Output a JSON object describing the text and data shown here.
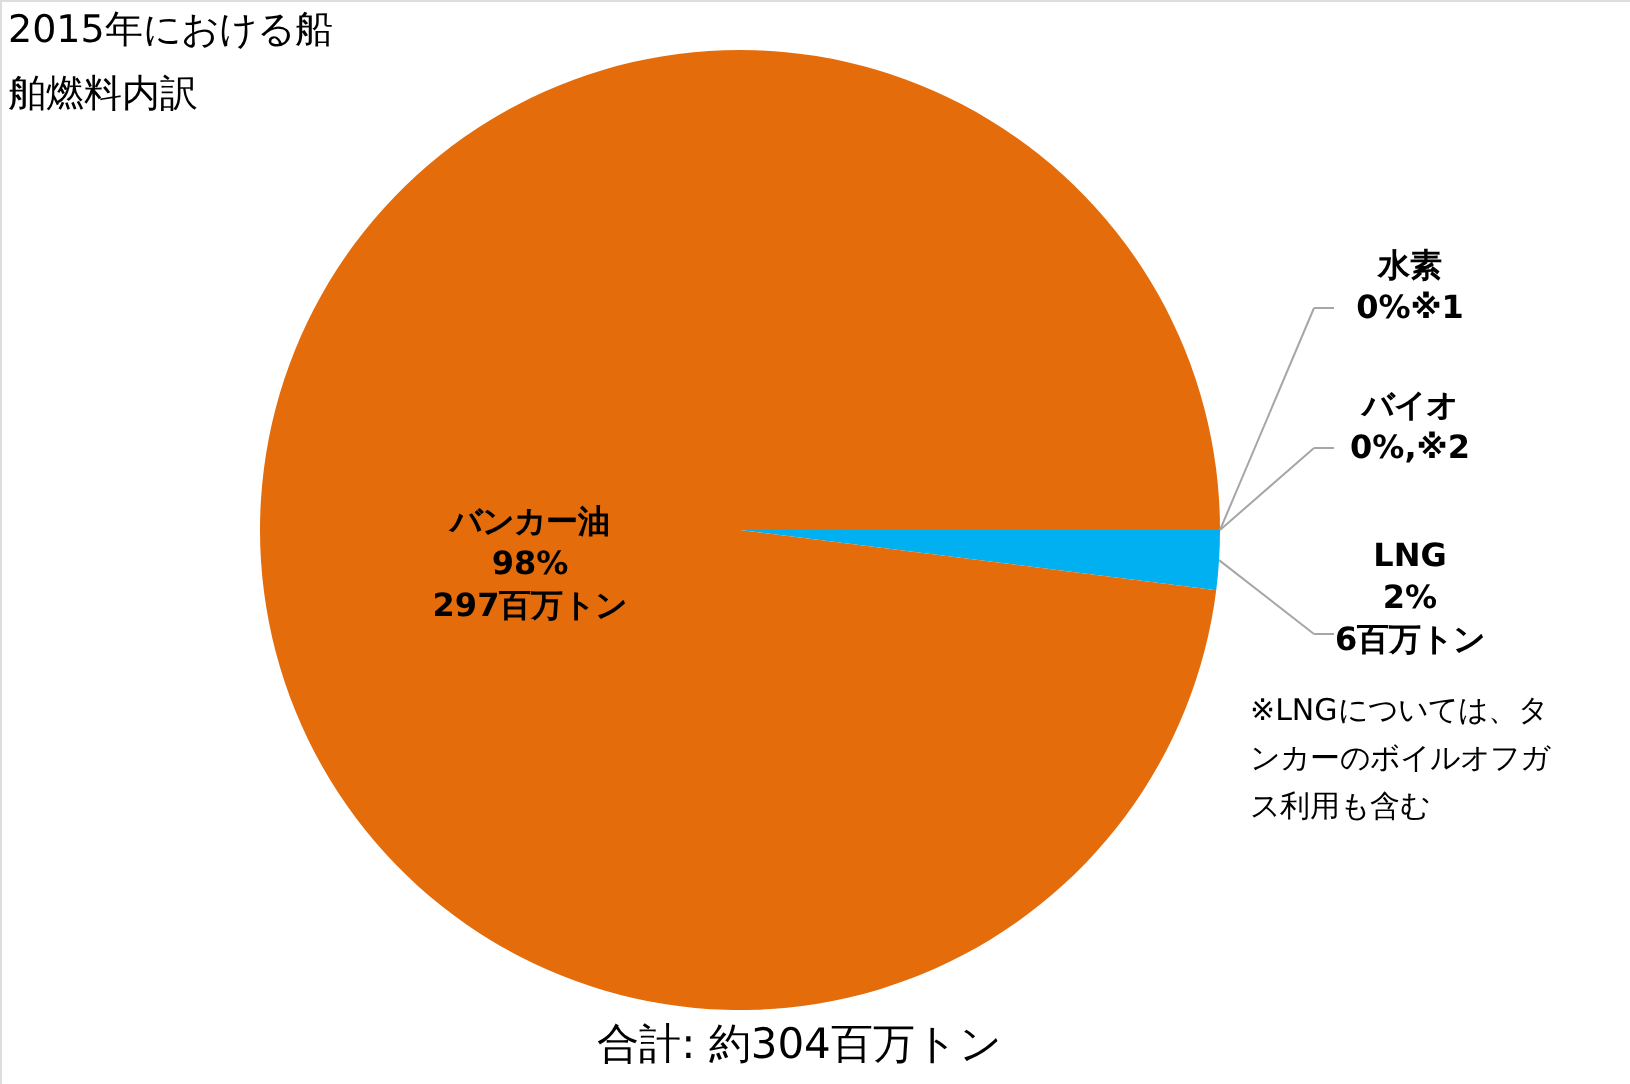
{
  "chart_data": {
    "type": "pie",
    "title": "2015年における船舶燃料内訳",
    "categories": [
      "水素",
      "バイオ",
      "LNG",
      "バンカー油"
    ],
    "values": [
      0,
      0,
      2,
      98
    ],
    "colors": [
      "#a0a0a0",
      "#5fa05f",
      "#00b0f0",
      "#e46c0a"
    ],
    "value_labels": [
      "0%※1",
      "0%,※2",
      "2%\n6百万トン",
      "98%\n297百万トン"
    ],
    "annotations": [
      "※LNGについては、タンカーのボイルオフガス利用も含む",
      "合計: 約304百万トン"
    ]
  }
}
